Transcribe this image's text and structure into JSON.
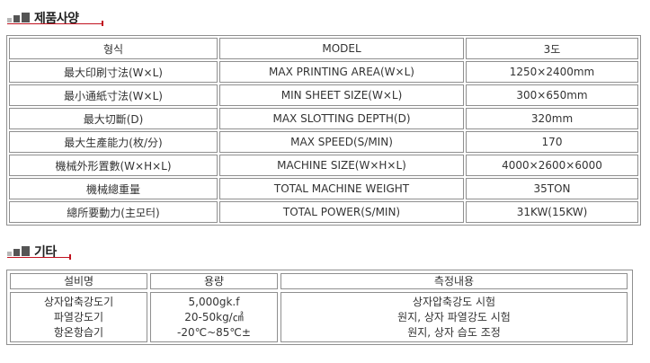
{
  "section1": {
    "title": "제품사양"
  },
  "spec": {
    "header": [
      "형식",
      "MODEL",
      "3도"
    ],
    "rows": [
      [
        "最大印刷寸法(W×L)",
        "MAX PRINTING AREA(W×L)",
        "1250×2400mm"
      ],
      [
        "最小通紙寸法(W×L)",
        "MIN SHEET SIZE(W×L)",
        "300×650mm"
      ],
      [
        "最大切斷(D)",
        "MAX SLOTTING DEPTH(D)",
        "320mm"
      ],
      [
        "最大生產能力(枚/分)",
        "MAX SPEED(S/MIN)",
        "170"
      ],
      [
        "機械外形置數(W×H×L)",
        "MACHINE SIZE(W×H×L)",
        "4000×2600×6000"
      ],
      [
        "機械總重量",
        "TOTAL MACHINE WEIGHT",
        "35TON"
      ],
      [
        "總所要動力(主모터)",
        "TOTAL POWER(S/MIN)",
        "31KW(15KW)"
      ]
    ]
  },
  "section2": {
    "title": "기타"
  },
  "etc": {
    "header": [
      "설비명",
      "용량",
      "측정내용"
    ],
    "equipment": [
      "상자압축강도기",
      "파열강도기",
      "항온항습기"
    ],
    "capacity": [
      "5,000gk.f",
      "20-50kg/㎠",
      "-20℃~85℃±"
    ],
    "measurement": [
      "상자압축강도 시험",
      "원지, 상자 파열강도 시험",
      "원지, 상자 습도 조정"
    ]
  },
  "colors": {
    "accent": "#c1121f",
    "border": "#8f8f8f",
    "text": "#333333"
  }
}
